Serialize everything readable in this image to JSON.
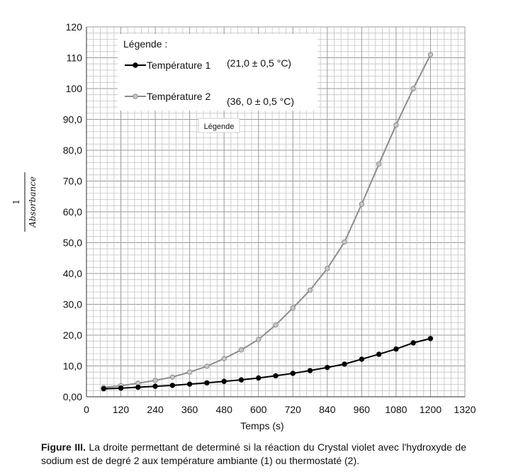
{
  "chart_data": {
    "type": "line",
    "xlabel": "Temps (s)",
    "ylabel_numerator": "1",
    "ylabel_denominator": "Absorbance",
    "xlim": [
      0,
      1320
    ],
    "ylim": [
      0,
      120
    ],
    "x_ticks": [
      {
        "value": 0,
        "label": "0"
      },
      {
        "value": 120,
        "label": "120"
      },
      {
        "value": 240,
        "label": "240"
      },
      {
        "value": 360,
        "label": "360"
      },
      {
        "value": 480,
        "label": "480"
      },
      {
        "value": 600,
        "label": "600"
      },
      {
        "value": 720,
        "label": "720"
      },
      {
        "value": 840,
        "label": "840"
      },
      {
        "value": 960,
        "label": "960"
      },
      {
        "value": 1080,
        "label": "1080"
      },
      {
        "value": 1200,
        "label": "1200"
      },
      {
        "value": 1320,
        "label": "1320"
      }
    ],
    "y_ticks": [
      {
        "value": 0,
        "label": "0,00"
      },
      {
        "value": 10,
        "label": "10,0"
      },
      {
        "value": 20,
        "label": "20,0"
      },
      {
        "value": 30,
        "label": "30,0"
      },
      {
        "value": 40,
        "label": "40,0"
      },
      {
        "value": 50,
        "label": "50,0"
      },
      {
        "value": 60,
        "label": "60,0"
      },
      {
        "value": 70,
        "label": "70,0"
      },
      {
        "value": 80,
        "label": "80,0"
      },
      {
        "value": 90,
        "label": "90,0"
      },
      {
        "value": 100,
        "label": "100"
      },
      {
        "value": 110,
        "label": "110"
      },
      {
        "value": 120,
        "label": "120"
      }
    ],
    "grid": true,
    "legend": {
      "title": "Légende :",
      "placement": "top-left",
      "entries": [
        {
          "series": "Température 1",
          "note": "(21,0 ± 0,5 °C)"
        },
        {
          "series": "Température 2",
          "note": "(36, 0 ± 0,5 °C)"
        }
      ]
    },
    "floating_label": "Légende",
    "x": [
      60,
      120,
      180,
      240,
      300,
      360,
      420,
      480,
      540,
      600,
      660,
      720,
      780,
      840,
      900,
      960,
      1020,
      1080,
      1140,
      1200
    ],
    "series": [
      {
        "name": "Température 1",
        "color": "#000000",
        "values": [
          2.6,
          2.8,
          3.1,
          3.4,
          3.7,
          4.1,
          4.5,
          5.0,
          5.5,
          6.1,
          6.8,
          7.6,
          8.5,
          9.5,
          10.6,
          12.2,
          13.8,
          15.5,
          17.5,
          18.9
        ]
      },
      {
        "name": "Température 2",
        "color": "#8c8c8c",
        "values": [
          3.0,
          3.6,
          4.4,
          5.3,
          6.4,
          8.0,
          9.9,
          12.4,
          15.2,
          18.6,
          23.3,
          28.8,
          34.6,
          41.6,
          50.2,
          62.5,
          75.5,
          88.2,
          100.0,
          111.0
        ]
      }
    ]
  },
  "caption": {
    "label": "Figure III.",
    "text": " La droite permettant de determiné si la réaction du Crystal violet avec l'hydroxyde de sodium est de degré 2 aux température ambiante (1) ou thermostaté (2)."
  }
}
